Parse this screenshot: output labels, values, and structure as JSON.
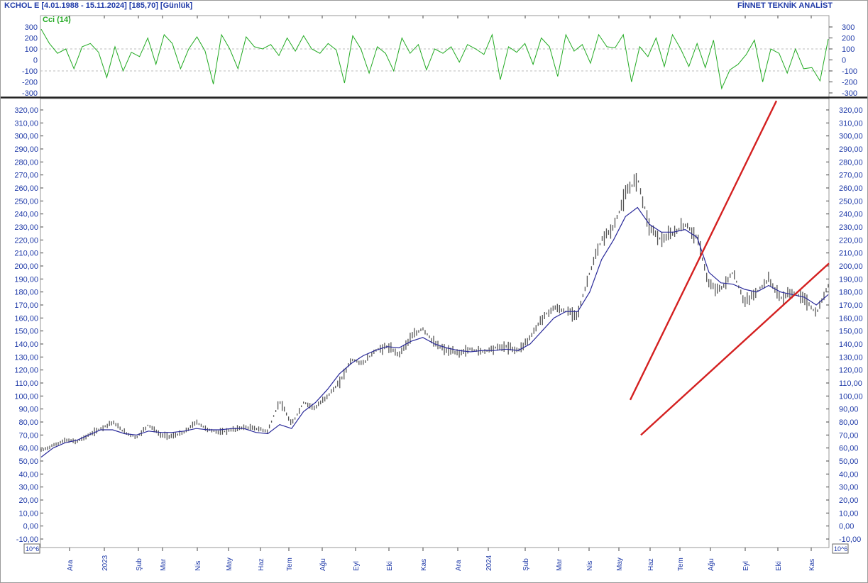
{
  "header": {
    "title_left": "KCHOL E  [4.01.1988 - 15.11.2024]  [185,70]  [Günlük]",
    "title_right": "FİNNET TEKNİK ANALİST"
  },
  "colors": {
    "axis_text": "#1f3aa8",
    "cci_line": "#22aa22",
    "price_bars": "#555555",
    "moving_average": "#2a2a9a",
    "trendlines": "#d42020"
  },
  "chart_data": [
    {
      "type": "line",
      "title": "Cci (14)",
      "ylim": [
        -320,
        320
      ],
      "yticks": [
        300,
        200,
        100,
        0,
        -100,
        -200,
        -300
      ],
      "reference_lines": [
        100,
        -100
      ],
      "series": [
        {
          "values": [
            280,
            150,
            60,
            100,
            -80,
            120,
            150,
            70,
            -160,
            120,
            -100,
            70,
            30,
            200,
            -40,
            230,
            150,
            -80,
            100,
            210,
            80,
            -220,
            230,
            100,
            -80,
            210,
            120,
            100,
            140,
            40,
            200,
            80,
            220,
            100,
            60,
            150,
            90,
            -210,
            220,
            100,
            -120,
            120,
            60,
            -100,
            200,
            60,
            140,
            -90,
            100,
            60,
            120,
            -20,
            140,
            100,
            50,
            230,
            -180,
            120,
            70,
            150,
            -40,
            200,
            120,
            -150,
            230,
            80,
            140,
            -30,
            230,
            120,
            110,
            230,
            -200,
            120,
            30,
            200,
            -60,
            230,
            100,
            -60,
            150,
            -70,
            180,
            -260,
            -90,
            -40,
            50,
            180,
            -200,
            100,
            60,
            -120,
            100,
            -80,
            -70,
            -190,
            190
          ]
        }
      ]
    },
    {
      "type": "bar",
      "subtype": "ohlc",
      "title": "KCHOL E",
      "ylim": [
        -10,
        325
      ],
      "yticks": [
        -10,
        0,
        10,
        20,
        30,
        40,
        50,
        60,
        70,
        80,
        90,
        100,
        110,
        120,
        130,
        140,
        150,
        160,
        170,
        180,
        190,
        200,
        210,
        220,
        230,
        240,
        250,
        260,
        270,
        280,
        290,
        300,
        310,
        320
      ],
      "scale_note": "10^6",
      "x_labels": [
        "Ara",
        "2023",
        "Şub",
        "Mar",
        "Nis",
        "May",
        "Haz",
        "Tem",
        "Ağu",
        "Eyl",
        "Eki",
        "Kas",
        "Ara",
        "2024",
        "Şub",
        "Mar",
        "Nis",
        "May",
        "Haz",
        "Tem",
        "Ağu",
        "Eyl",
        "Eki",
        "Kas"
      ],
      "series": [
        {
          "name": "price",
          "values": [
            58,
            62,
            66,
            65,
            70,
            75,
            80,
            72,
            68,
            78,
            70,
            69,
            72,
            80,
            74,
            72,
            74,
            76,
            75,
            73,
            96,
            78,
            95,
            91,
            100,
            110,
            128,
            125,
            135,
            138,
            132,
            145,
            152,
            140,
            135,
            133,
            136,
            134,
            137,
            138,
            135,
            145,
            160,
            168,
            165,
            163,
            195,
            220,
            230,
            255,
            268,
            230,
            220,
            225,
            232,
            222,
            185,
            182,
            195,
            172,
            180,
            190,
            175,
            180,
            175,
            163,
            185
          ]
        },
        {
          "name": "moving average",
          "values": [
            53,
            60,
            64,
            66,
            70,
            74,
            74,
            71,
            70,
            73,
            72,
            72,
            73,
            75,
            74,
            74,
            75,
            75,
            72,
            71,
            78,
            75,
            88,
            95,
            105,
            117,
            125,
            131,
            135,
            138,
            137,
            142,
            145,
            140,
            137,
            135,
            134,
            135,
            135,
            136,
            135,
            140,
            150,
            160,
            165,
            165,
            180,
            205,
            220,
            238,
            245,
            232,
            226,
            226,
            228,
            222,
            195,
            187,
            186,
            182,
            180,
            185,
            180,
            178,
            176,
            170,
            178
          ]
        }
      ],
      "trendlines": [
        {
          "from": {
            "x_label": "May",
            "y": 97
          },
          "to": {
            "x_label": "Eki",
            "y": 327
          }
        },
        {
          "from": {
            "x_label": "May",
            "y": 70
          },
          "to": {
            "x_label": "Kas",
            "y": 202
          }
        }
      ]
    }
  ]
}
